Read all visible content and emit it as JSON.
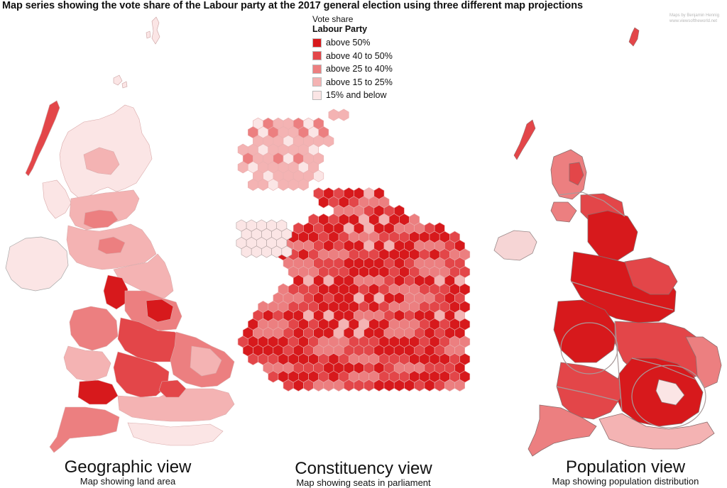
{
  "title": "Map series showing the vote share of the Labour party at the 2017 general election using three different map projections",
  "credit": [
    "Maps by Benjamin Hennig",
    "www.viewsoftheworld.net"
  ],
  "legend": {
    "heading": "Vote share",
    "subheading": "Labour Party",
    "items": [
      {
        "label": "above 50%",
        "color": "#d7191c"
      },
      {
        "label": "above 40 to 50%",
        "color": "#e34649"
      },
      {
        "label": "above 25 to 40%",
        "color": "#ec7f80"
      },
      {
        "label": "above 15 to 25%",
        "color": "#f4b3b3"
      },
      {
        "label": "15% and below",
        "color": "#fbe5e5"
      }
    ]
  },
  "maps": [
    {
      "id": "geographic",
      "caption": "Geographic view",
      "subcaption": "Map showing land area"
    },
    {
      "id": "constituency",
      "caption": "Constituency view",
      "subcaption": "Map showing seats in parliament"
    },
    {
      "id": "population",
      "caption": "Population view",
      "subcaption": "Map showing population distribution"
    }
  ]
}
